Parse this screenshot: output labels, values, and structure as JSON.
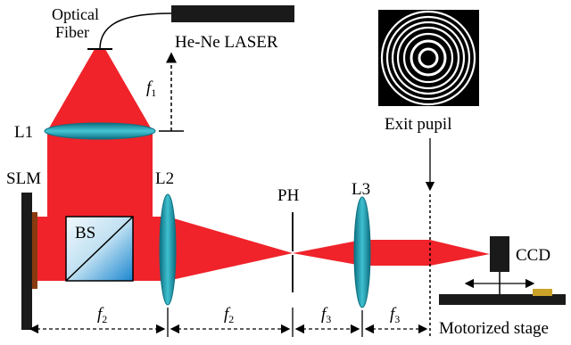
{
  "labels": {
    "optical": "Optical",
    "fiber": "Fiber",
    "laser": "He-Ne LASER",
    "l1": "L1",
    "slm": "SLM",
    "l2": "L2",
    "bs": "BS",
    "ph": "PH",
    "l3": "L3",
    "exit_pupil": "Exit pupil",
    "ccd": "CCD",
    "stage": "Motorized stage"
  },
  "focal_labels": {
    "f1": {
      "letter": "f",
      "sub": "1"
    },
    "f2a": {
      "letter": "f",
      "sub": "2"
    },
    "f2b": {
      "letter": "f",
      "sub": "2"
    },
    "f3a": {
      "letter": "f",
      "sub": "3"
    },
    "f3b": {
      "letter": "f",
      "sub": "3"
    }
  },
  "colors": {
    "beam": "#f0232a",
    "lens": "#2aa5b8",
    "lens_dark": "#0d6f80",
    "bs_light": "#ddeff8",
    "bs_dark": "#1b86cf",
    "slm_frame": "#1a1a1a",
    "slm_face": "#8a3a10"
  }
}
